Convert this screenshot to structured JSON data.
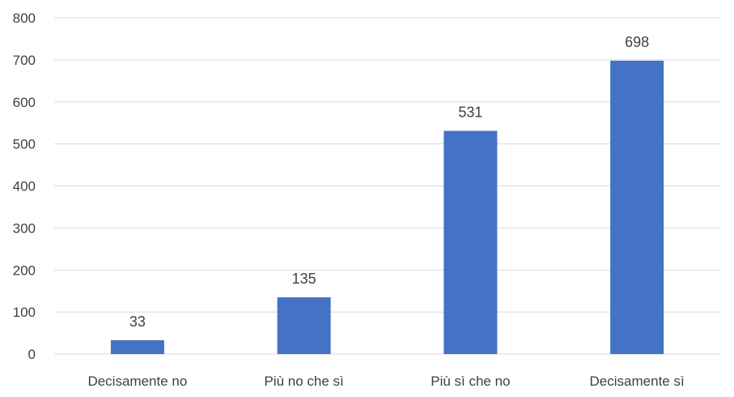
{
  "chart_data": {
    "type": "bar",
    "categories": [
      "Decisamente no",
      "Più no che sì",
      "Più sì che no",
      "Decisamente sì"
    ],
    "values": [
      33,
      135,
      531,
      698
    ],
    "data_labels": [
      "33",
      "135",
      "531",
      "698"
    ],
    "title": "",
    "xlabel": "",
    "ylabel": "",
    "ylim": [
      0,
      800
    ],
    "yticks": [
      0,
      100,
      200,
      300,
      400,
      500,
      600,
      700,
      800
    ],
    "ytick_labels": [
      "0",
      "100",
      "200",
      "300",
      "400",
      "500",
      "600",
      "700",
      "800"
    ],
    "grid": true,
    "legend": "none",
    "bar_color": "#4472C4",
    "grid_color": "#D9D9D9",
    "text_color": "#404040"
  }
}
